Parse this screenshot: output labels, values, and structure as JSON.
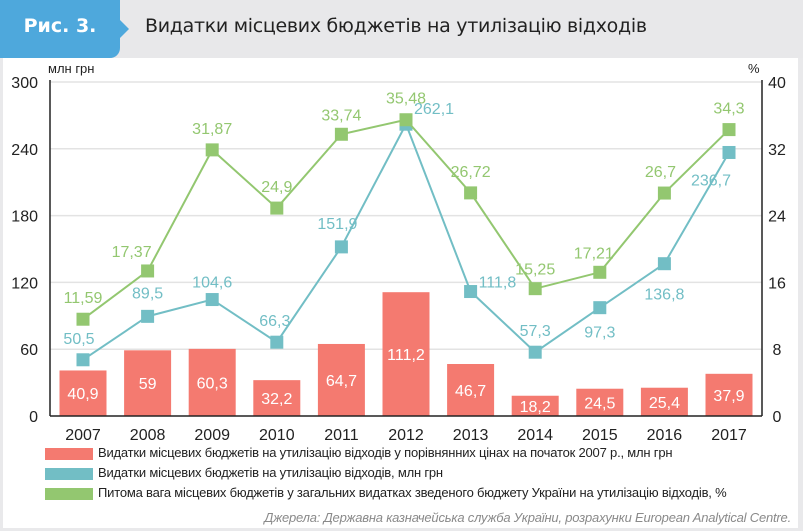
{
  "header": {
    "figure_label": "Рис. 3.",
    "title": "Видатки місцевих бюджетів на утилізацію відходів"
  },
  "colors": {
    "accent": "#4ea8dc",
    "bars": "#f47a70",
    "line_spending": "#72bec5",
    "line_share": "#93c770"
  },
  "chart_data": {
    "type": "bar+line",
    "title": "Видатки місцевих бюджетів на утилізацію відходів",
    "categories": [
      "2007",
      "2008",
      "2009",
      "2010",
      "2011",
      "2012",
      "2013",
      "2014",
      "2015",
      "2016",
      "2017"
    ],
    "left_axis": {
      "label": "млн грн",
      "ylim": [
        0,
        300
      ],
      "ticks": [
        "0",
        "60",
        "120",
        "180",
        "240",
        "300"
      ]
    },
    "right_axis": {
      "label": "%",
      "ylim": [
        0,
        40
      ],
      "ticks": [
        "0",
        "8",
        "16",
        "24",
        "32",
        "40"
      ]
    },
    "grid": true,
    "series": [
      {
        "name": "Видатки місцевих бюджетів на утилізацію відходів у порівнянних цінах на початок 2007 р., млн грн",
        "kind": "bar",
        "axis": "left",
        "values": [
          40.9,
          59,
          60.3,
          32.2,
          64.7,
          111.2,
          46.7,
          18.2,
          24.5,
          25.4,
          37.9
        ],
        "labels": [
          "40,9",
          "59",
          "60,3",
          "32,2",
          "64,7",
          "111,2",
          "46,7",
          "18,2",
          "24,5",
          "25,4",
          "37,9"
        ]
      },
      {
        "name": "Видатки місцевих бюджетів на утилізацію відходів, млн грн",
        "kind": "line",
        "axis": "left",
        "values": [
          50.5,
          89.5,
          104.6,
          66.3,
          151.9,
          262.1,
          111.8,
          57.3,
          97.3,
          136.8,
          236.7
        ],
        "labels": [
          "50,5",
          "89,5",
          "104,6",
          "66,3",
          "151,9",
          "262,1",
          "111,8",
          "57,3",
          "97,3",
          "136,8",
          "236,7"
        ]
      },
      {
        "name": "Питома вага місцевих бюджетів у загальних видатках зведеного бюджету України на утилізацію відходів, %",
        "kind": "line",
        "axis": "right",
        "values": [
          11.59,
          17.37,
          31.87,
          24.9,
          33.74,
          35.48,
          26.72,
          15.25,
          17.21,
          26.7,
          34.3
        ],
        "labels": [
          "11,59",
          "17,37",
          "31,87",
          "24,9",
          "33,74",
          "35,48",
          "26,72",
          "15,25",
          "17,21",
          "26,7",
          "34,3"
        ]
      }
    ],
    "legend_position": "bottom"
  },
  "source": "Джерела: Державна казначейська служба України, розрахунки European Analytical Centre."
}
